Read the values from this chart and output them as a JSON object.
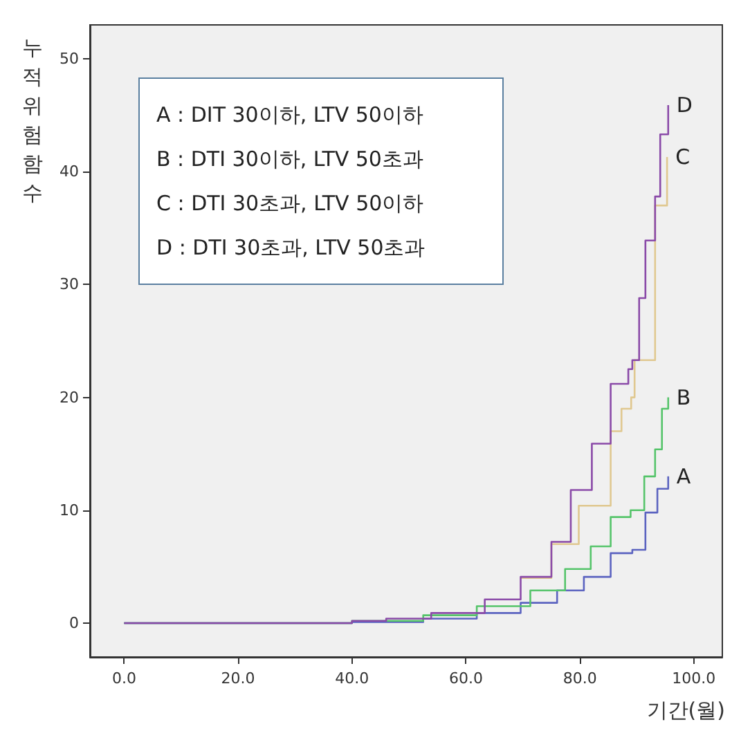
{
  "chart_data": {
    "type": "step",
    "xlabel": "기간(월)",
    "ylabel": "누적위험함수",
    "annotations": [
      "A : DIT 30이하, LTV 50이하",
      "B : DTI 30이하, LTV 50초과",
      "C : DTI 30초과, LTV 50이하",
      "D : DTI 30초과, LTV 50초과"
    ],
    "xlim": [
      -6,
      105
    ],
    "ylim": [
      -3,
      53
    ],
    "xticks": [
      {
        "value": 0,
        "label": "0.0"
      },
      {
        "value": 20,
        "label": "20.0"
      },
      {
        "value": 40,
        "label": "40.0"
      },
      {
        "value": 60,
        "label": "60.0"
      },
      {
        "value": 80,
        "label": "80.0"
      },
      {
        "value": 100,
        "label": "100.0"
      }
    ],
    "yticks": [
      0,
      10,
      20,
      30,
      40,
      50
    ],
    "grid": false,
    "legend": false,
    "marker": "none",
    "line_style": "solid",
    "series": [
      {
        "name": "A",
        "color": "#5b63c0",
        "x": [
          0,
          40,
          52.5,
          61.9,
          69.6,
          76,
          80.7,
          85.4,
          89.2,
          91.5,
          93.6,
          95.5
        ],
        "values": [
          0,
          0.1,
          0.4,
          0.9,
          1.8,
          2.9,
          4.1,
          6.2,
          6.5,
          9.8,
          11.9,
          13
        ]
      },
      {
        "name": "B",
        "color": "#55c46a",
        "x": [
          0,
          40,
          52.5,
          61.9,
          71.3,
          77.4,
          81.9,
          85.4,
          88.9,
          91.3,
          93.2,
          94.4,
          95.5
        ],
        "values": [
          0,
          0.2,
          0.7,
          1.5,
          2.9,
          4.8,
          6.8,
          9.4,
          10,
          13,
          15.4,
          19,
          20
        ]
      },
      {
        "name": "C",
        "color": "#e0c890",
        "x": [
          69.6,
          75,
          79.8,
          85.4,
          87.3,
          89,
          89.6,
          93.2,
          95.3
        ],
        "values": [
          4,
          7,
          10.4,
          17,
          19,
          20,
          23.3,
          37,
          41.3
        ]
      },
      {
        "name": "D",
        "color": "#8a4aa8",
        "x": [
          0,
          40,
          46,
          53.9,
          63.3,
          69.6,
          75,
          78.4,
          82.1,
          85.4,
          88.5,
          89.2,
          90.4,
          91.5,
          93.2,
          94.1,
          95.5
        ],
        "values": [
          0,
          0.2,
          0.4,
          0.9,
          2.1,
          4.1,
          7.2,
          11.8,
          15.9,
          21.2,
          22.5,
          23.3,
          28.8,
          33.9,
          37.8,
          43.3,
          45.9
        ]
      }
    ]
  }
}
